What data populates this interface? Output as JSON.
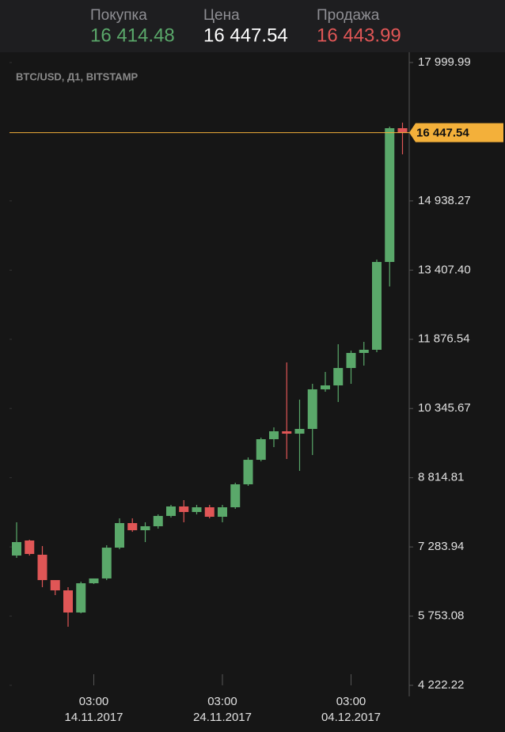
{
  "header": {
    "buy_label": "Покупка",
    "buy": "16 414.48",
    "price_label": "Цена",
    "price": "16 447.54",
    "sell_label": "Продажа",
    "sell": "16 443.99"
  },
  "chart_data": {
    "type": "candlestick",
    "subtitle": "BTC/USD, Д1, BITSTAMP",
    "x": [
      "2017-11-08",
      "2017-11-09",
      "2017-11-10",
      "2017-11-11",
      "2017-11-12",
      "2017-11-13",
      "2017-11-14",
      "2017-11-15",
      "2017-11-16",
      "2017-11-17",
      "2017-11-18",
      "2017-11-19",
      "2017-11-20",
      "2017-11-21",
      "2017-11-22",
      "2017-11-23",
      "2017-11-24",
      "2017-11-25",
      "2017-11-26",
      "2017-11-27",
      "2017-11-28",
      "2017-11-29",
      "2017-11-30",
      "2017-12-01",
      "2017-12-02",
      "2017-12-03",
      "2017-12-04",
      "2017-12-05",
      "2017-12-06",
      "2017-12-07",
      "2017-12-08"
    ],
    "open": [
      7093,
      7426,
      7111,
      6550,
      6323,
      5833,
      6480,
      6586,
      7268,
      7811,
      7653,
      7741,
      7969,
      8179,
      8056,
      8161,
      7951,
      8161,
      8669,
      9211,
      9667,
      9842,
      9789,
      9894,
      10770,
      10857,
      11242,
      11575,
      11645,
      13588,
      16547
    ],
    "high": [
      7829,
      7443,
      7303,
      6550,
      6393,
      6515,
      6586,
      7321,
      7916,
      7916,
      7829,
      8004,
      8214,
      8319,
      8214,
      8214,
      8214,
      8704,
      9264,
      9702,
      9929,
      11365,
      10542,
      10892,
      11155,
      11768,
      11627,
      11820,
      13641,
      16582,
      16670
    ],
    "low": [
      7041,
      7093,
      6393,
      6218,
      5518,
      5815,
      6463,
      6550,
      7233,
      7618,
      7391,
      7688,
      7934,
      7829,
      8004,
      7916,
      7829,
      8126,
      8634,
      9177,
      9492,
      9229,
      8966,
      9317,
      10717,
      10490,
      10892,
      11295,
      11592,
      13046,
      15969
    ],
    "close": [
      7391,
      7128,
      6550,
      6323,
      5833,
      6480,
      6586,
      7268,
      7811,
      7653,
      7741,
      7969,
      8179,
      8056,
      8161,
      7951,
      8161,
      8669,
      9211,
      9667,
      9842,
      9789,
      9894,
      10770,
      10857,
      11242,
      11575,
      11645,
      13588,
      16547,
      16447.54
    ],
    "up_color": "#5aa86a",
    "down_color": "#e05656",
    "ylim": [
      4222.22,
      17999.99
    ],
    "yticks": [
      {
        "value": 4222.22,
        "label": "4 222.22"
      },
      {
        "value": 5753.08,
        "label": "5 753.08"
      },
      {
        "value": 7283.94,
        "label": "7 283.94"
      },
      {
        "value": 8814.81,
        "label": "8 814.81"
      },
      {
        "value": 10345.67,
        "label": "10 345.67"
      },
      {
        "value": 11876.54,
        "label": "11 876.54"
      },
      {
        "value": 13407.4,
        "label": "13 407.40"
      },
      {
        "value": 14938.27,
        "label": "14 938.27"
      },
      {
        "value": 17999.99,
        "label": "17 999.99"
      }
    ],
    "xticks": [
      {
        "value": "2017-11-14",
        "label": "14.11.2017",
        "time": "03:00"
      },
      {
        "value": "2017-11-24",
        "label": "24.11.2017",
        "time": "03:00"
      },
      {
        "value": "2017-12-04",
        "label": "04.12.2017",
        "time": "03:00"
      }
    ],
    "current_price": {
      "value": 16447.54,
      "label": "16 447.54"
    },
    "current_color": "#f3b03a"
  }
}
